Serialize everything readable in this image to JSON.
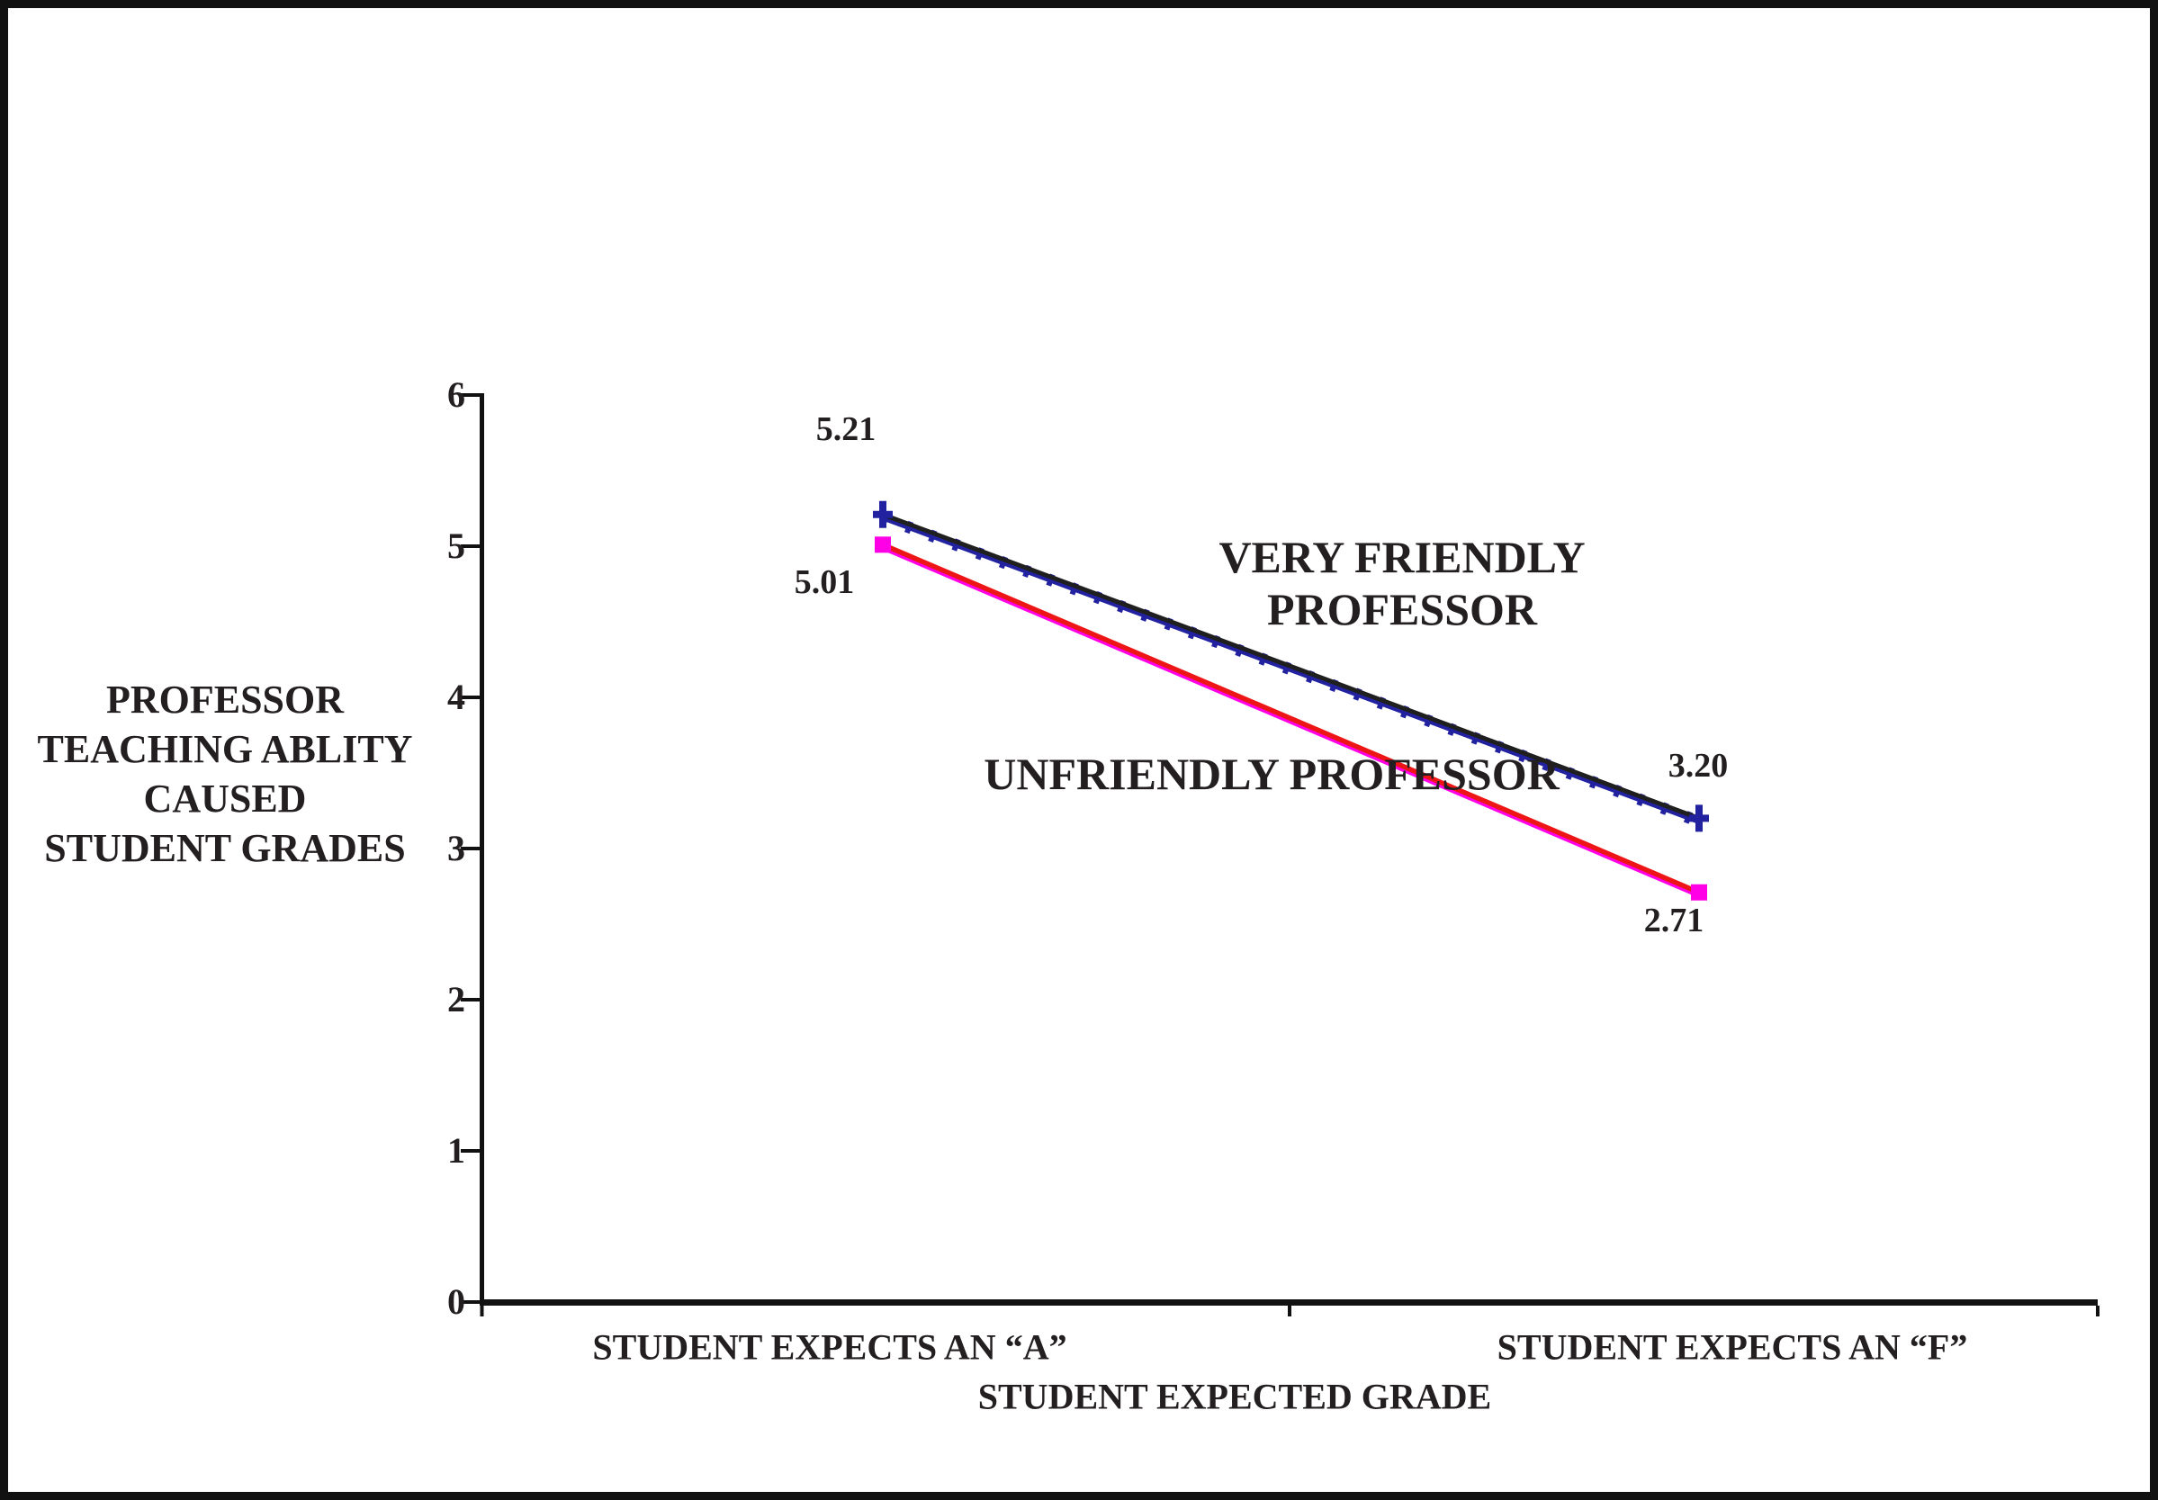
{
  "chart_data": {
    "type": "line",
    "categories": [
      "STUDENT EXPECTS AN “A”",
      "STUDENT EXPECTS AN “F”"
    ],
    "series": [
      {
        "name": "VERY FRIENDLY PROFESSOR",
        "name_lines": [
          "VERY FRIENDLY",
          "PROFESSOR"
        ],
        "values": [
          5.21,
          3.2
        ],
        "point_labels": [
          "5.21",
          "3.20"
        ],
        "line_color": "#1f1f1f",
        "accent_color": "#2222a0",
        "marker": "plus"
      },
      {
        "name": "UNFRIENDLY PROFESSOR",
        "name_lines": [
          "UNFRIENDLY PROFESSOR"
        ],
        "values": [
          5.01,
          2.71
        ],
        "point_labels": [
          "5.01",
          "2.71"
        ],
        "line_color": "#ed1515",
        "accent_color": "#ff00e6",
        "marker": "square"
      }
    ],
    "title": "",
    "xlabel": "STUDENT EXPECTED GRADE",
    "ylabel": "PROFESSOR TEACHING ABLITY CAUSED STUDENT GRADES",
    "ylabel_lines": [
      "PROFESSOR",
      "TEACHING ABLITY",
      "CAUSED",
      "STUDENT GRADES"
    ],
    "ylim": [
      0,
      6
    ],
    "yticks": [
      0,
      1,
      2,
      3,
      4,
      5,
      6
    ],
    "grid": false,
    "legend_position": "inline-annotations",
    "axis_color": "#111111",
    "text_color": "#231f20"
  }
}
